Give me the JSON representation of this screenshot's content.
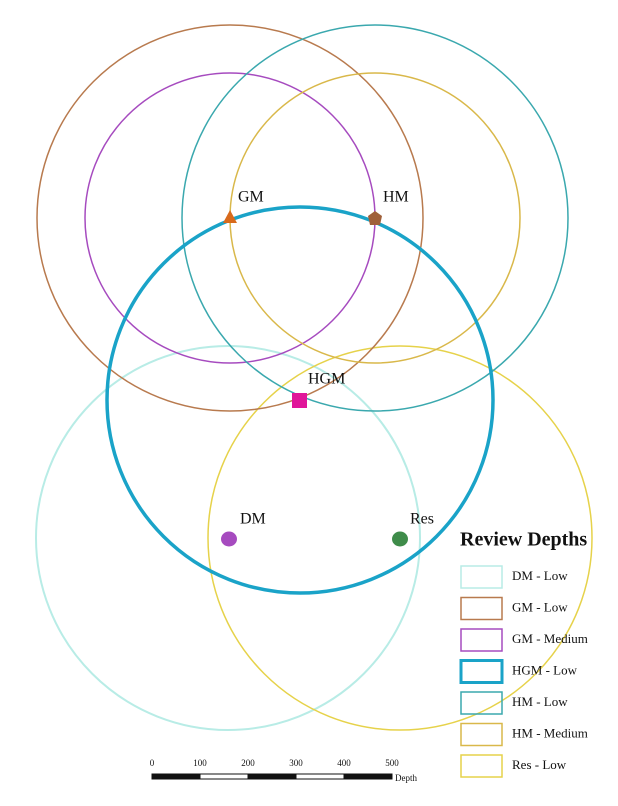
{
  "points": [
    {
      "label": "GM"
    },
    {
      "label": "HM"
    },
    {
      "label": "HGM"
    },
    {
      "label": "DM"
    },
    {
      "label": "Res"
    }
  ],
  "legend": {
    "title": "Review Depths",
    "items": [
      {
        "label": "DM - Low",
        "color": "#b8ece6"
      },
      {
        "label": "GM - Low",
        "color": "#b87a4e"
      },
      {
        "label": "GM - Medium",
        "color": "#a64bbf"
      },
      {
        "label": "HGM - Low",
        "color": "#1aa3c8"
      },
      {
        "label": "HM - Low",
        "color": "#3aa8ae"
      },
      {
        "label": "HM - Medium",
        "color": "#d9b84a"
      },
      {
        "label": "Res - Low",
        "color": "#e6d24a"
      }
    ]
  },
  "scale_bar": {
    "labels": [
      "0",
      "100",
      "200",
      "300",
      "400",
      "500"
    ],
    "unit": "Depth"
  }
}
